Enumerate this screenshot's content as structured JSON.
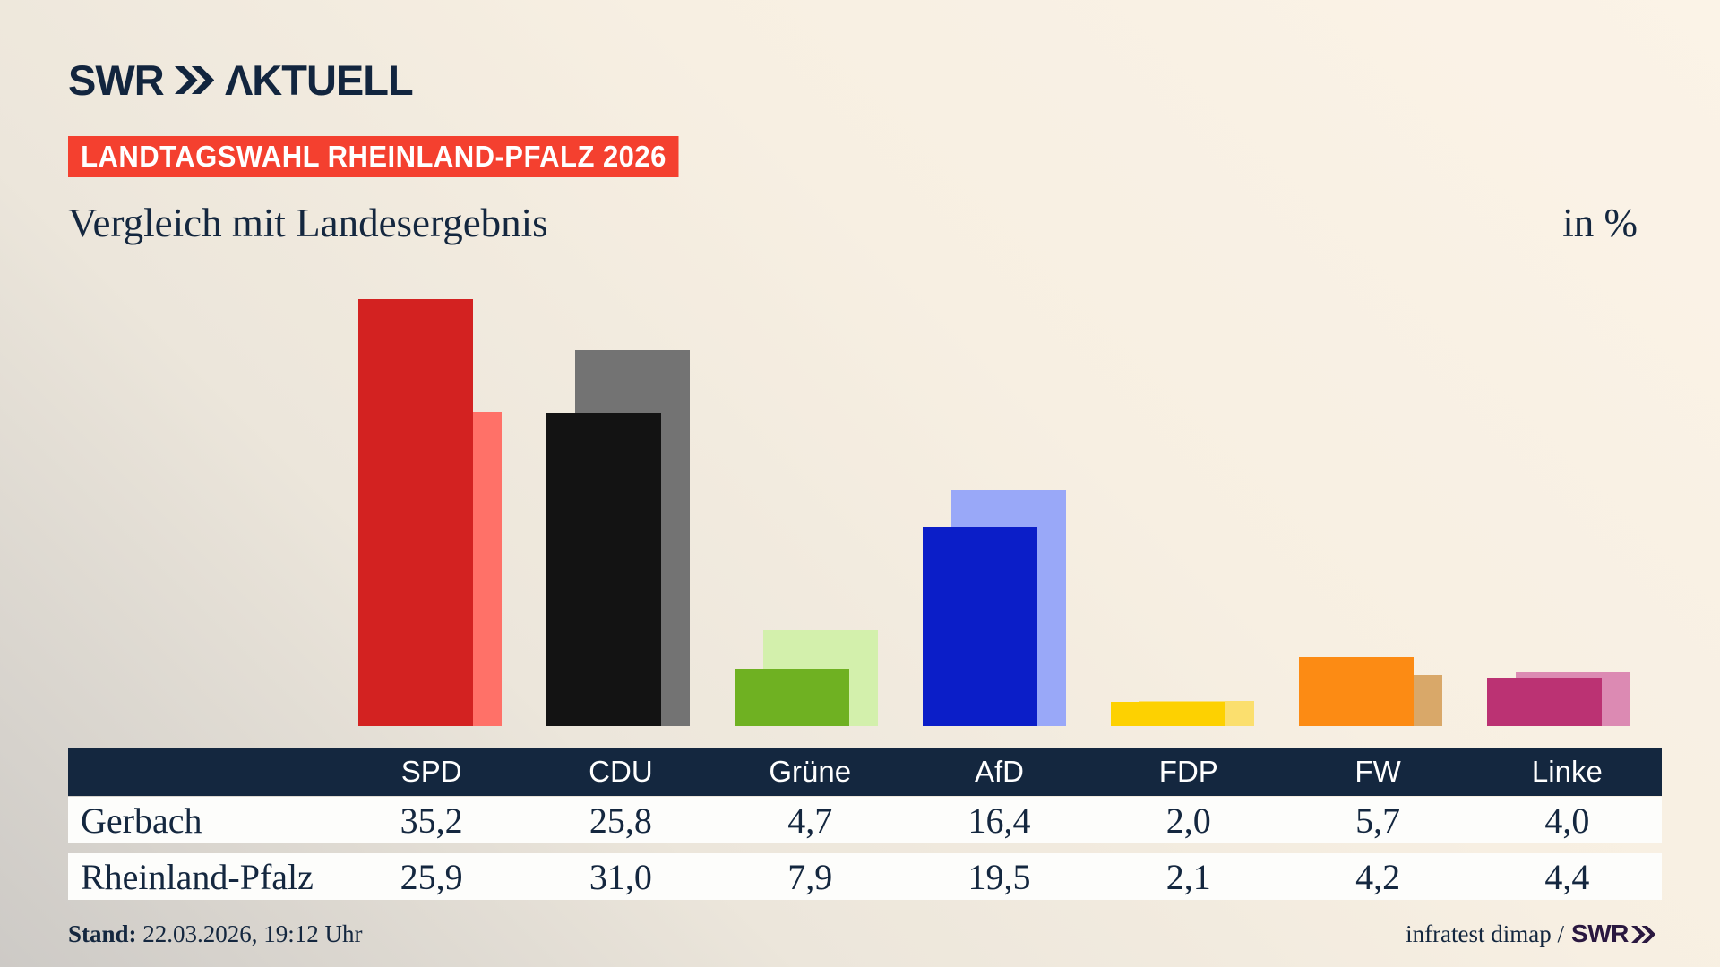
{
  "header": {
    "logo_swr": "SWR",
    "logo_aktuell": "AKTUELL",
    "badge": "LANDTAGSWAHL RHEINLAND-PFALZ 2026"
  },
  "title": "Vergleich mit Landesergebnis",
  "unit_label": "in %",
  "chart_data": {
    "type": "bar",
    "categories": [
      "SPD",
      "CDU",
      "Grüne",
      "AfD",
      "FDP",
      "FW",
      "Linke"
    ],
    "series": [
      {
        "name": "Gerbach",
        "values": [
          35.2,
          25.8,
          4.7,
          16.4,
          2.0,
          5.7,
          4.0
        ]
      },
      {
        "name": "Rheinland-Pfalz",
        "values": [
          25.9,
          31.0,
          7.9,
          19.5,
          2.1,
          4.2,
          4.4
        ]
      }
    ],
    "unit": "%",
    "ylim": [
      0,
      35.5
    ],
    "legend_position": "none",
    "grid": false,
    "bar_colors_gerbach": [
      "#d32221",
      "#131313",
      "#6fb122",
      "#0b1ec8",
      "#fdd101",
      "#fc8b14",
      "#bb3273"
    ],
    "bar_colors_rheinland_pfalz": [
      "#ff7168",
      "#737373",
      "#d3f0ac",
      "#99a8f8",
      "#fbdf6e",
      "#d9a869",
      "#dc8ab3"
    ]
  },
  "table": {
    "columns": [
      "SPD",
      "CDU",
      "Grüne",
      "AfD",
      "FDP",
      "FW",
      "Linke"
    ],
    "rows": [
      {
        "label": "Gerbach",
        "values": [
          "35,2",
          "25,8",
          "4,7",
          "16,4",
          "2,0",
          "5,7",
          "4,0"
        ]
      },
      {
        "label": "Rheinland-Pfalz",
        "values": [
          "25,9",
          "31,0",
          "7,9",
          "19,5",
          "2,1",
          "4,2",
          "4,4"
        ]
      }
    ]
  },
  "footer": {
    "stand_label": "Stand:",
    "stand_value": "22.03.2026, 19:12 Uhr",
    "source_text": "infratest dimap /",
    "source_logo": "SWR"
  },
  "colors": {
    "navy": "#14273f",
    "badge_red": "#f4402f",
    "footer_logo_purple": "#2a1840"
  }
}
